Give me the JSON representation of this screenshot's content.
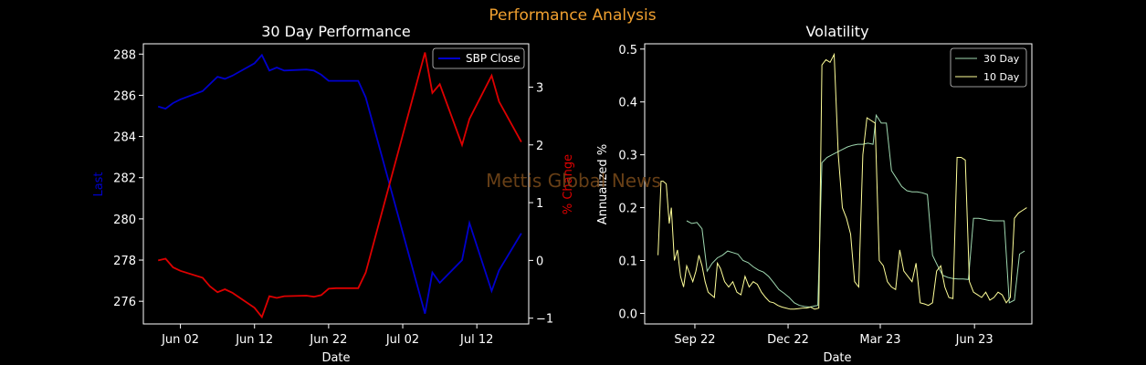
{
  "suptitle": "Performance Analysis",
  "watermark": "Mettis Global News",
  "colors": {
    "background": "#000000",
    "suptitle": "#f0a030",
    "close_line": "#0000cc",
    "pct_line": "#dd0000",
    "vol30": "#9fd8b0",
    "vol10": "#ffff99",
    "axes": "#ffffff",
    "watermark": "#7a4a1a"
  },
  "chart_data": [
    {
      "type": "line",
      "title": "30 Day Performance",
      "xlabel": "Date",
      "ylabel": "Last",
      "ylabel_right": "% Change",
      "legend": {
        "position": "top-right",
        "entries": [
          "SBP Close"
        ]
      },
      "grid": false,
      "x_ticks": [
        "2023-06-02",
        "2023-06-12",
        "2023-06-22",
        "2023-07-02",
        "2023-07-12"
      ],
      "x_tick_labels": [
        "Jun 02",
        "Jun 12",
        "Jun 22",
        "Jul 02",
        "Jul 12"
      ],
      "xlim": [
        "2023-05-28",
        "2023-07-19"
      ],
      "ylim": [
        274.9,
        288.5
      ],
      "y_ticks": [
        276,
        278,
        280,
        282,
        284,
        286,
        288
      ],
      "y2lim": [
        -1.1,
        3.75
      ],
      "y2_ticks": [
        -1,
        0,
        1,
        2,
        3
      ],
      "series": [
        {
          "name": "SBP Close",
          "axis": "left",
          "x": [
            "2023-05-30",
            "2023-05-31",
            "2023-06-01",
            "2023-06-02",
            "2023-06-05",
            "2023-06-06",
            "2023-06-07",
            "2023-06-08",
            "2023-06-09",
            "2023-06-12",
            "2023-06-13",
            "2023-06-14",
            "2023-06-15",
            "2023-06-16",
            "2023-06-19",
            "2023-06-20",
            "2023-06-21",
            "2023-06-22",
            "2023-06-23",
            "2023-06-26",
            "2023-06-27",
            "2023-07-05",
            "2023-07-06",
            "2023-07-07",
            "2023-07-10",
            "2023-07-11",
            "2023-07-14",
            "2023-07-15",
            "2023-07-18"
          ],
          "y": [
            285.45,
            285.35,
            285.62,
            285.8,
            286.2,
            286.55,
            286.9,
            286.8,
            286.95,
            287.55,
            287.95,
            287.2,
            287.35,
            287.2,
            287.25,
            287.2,
            287.0,
            286.7,
            286.7,
            286.7,
            285.9,
            275.4,
            277.4,
            276.9,
            278.0,
            279.8,
            276.5,
            277.5,
            279.3
          ]
        },
        {
          "name": "% Change",
          "axis": "right",
          "x": [
            "2023-05-30",
            "2023-05-31",
            "2023-06-01",
            "2023-06-02",
            "2023-06-05",
            "2023-06-06",
            "2023-06-07",
            "2023-06-08",
            "2023-06-09",
            "2023-06-12",
            "2023-06-13",
            "2023-06-14",
            "2023-06-15",
            "2023-06-16",
            "2023-06-19",
            "2023-06-20",
            "2023-06-21",
            "2023-06-22",
            "2023-06-23",
            "2023-06-26",
            "2023-06-27",
            "2023-07-05",
            "2023-07-06",
            "2023-07-07",
            "2023-07-10",
            "2023-07-11",
            "2023-07-14",
            "2023-07-15",
            "2023-07-18"
          ],
          "y": [
            0.0,
            0.03,
            -0.12,
            -0.18,
            -0.3,
            -0.45,
            -0.55,
            -0.5,
            -0.56,
            -0.82,
            -0.98,
            -0.62,
            -0.65,
            -0.62,
            -0.61,
            -0.63,
            -0.6,
            -0.49,
            -0.48,
            -0.48,
            -0.21,
            3.6,
            2.9,
            3.05,
            2.0,
            2.45,
            3.2,
            2.75,
            2.05
          ]
        }
      ]
    },
    {
      "type": "line",
      "title": "Volatility",
      "xlabel": "Date",
      "ylabel": "Annualized %",
      "legend": {
        "position": "top-right",
        "entries": [
          "30 Day",
          "10 Day"
        ]
      },
      "grid": false,
      "x_ticks": [
        "2022-09-01",
        "2022-12-01",
        "2023-03-01",
        "2023-06-01"
      ],
      "x_tick_labels": [
        "Sep 22",
        "Dec 22",
        "Mar 23",
        "Jun 23"
      ],
      "xlim": [
        "2022-07-14",
        "2023-07-27"
      ],
      "ylim": [
        -0.02,
        0.51
      ],
      "y_ticks": [
        0.0,
        0.1,
        0.2,
        0.3,
        0.4,
        0.5
      ],
      "y_tick_labels": [
        "0.0",
        "0.1",
        "0.2",
        "0.3",
        "0.4",
        "0.5"
      ],
      "series": [
        {
          "name": "30 Day",
          "x": [
            "2022-08-24",
            "2022-08-29",
            "2022-09-03",
            "2022-09-08",
            "2022-09-13",
            "2022-09-18",
            "2022-09-23",
            "2022-09-28",
            "2022-10-03",
            "2022-10-08",
            "2022-10-13",
            "2022-10-18",
            "2022-10-23",
            "2022-10-28",
            "2022-11-02",
            "2022-11-07",
            "2022-11-12",
            "2022-11-17",
            "2022-11-22",
            "2022-11-27",
            "2022-12-02",
            "2022-12-07",
            "2022-12-12",
            "2022-12-17",
            "2022-12-22",
            "2022-12-27",
            "2022-12-30",
            "2023-01-03",
            "2023-01-08",
            "2023-01-13",
            "2023-01-18",
            "2023-01-23",
            "2023-01-28",
            "2023-02-02",
            "2023-02-07",
            "2023-02-12",
            "2023-02-17",
            "2023-02-22",
            "2023-02-25",
            "2023-03-02",
            "2023-03-07",
            "2023-03-12",
            "2023-03-17",
            "2023-03-22",
            "2023-03-27",
            "2023-04-01",
            "2023-04-06",
            "2023-04-11",
            "2023-04-16",
            "2023-04-21",
            "2023-04-26",
            "2023-05-01",
            "2023-05-06",
            "2023-05-11",
            "2023-05-16",
            "2023-05-21",
            "2023-05-26",
            "2023-05-31",
            "2023-06-05",
            "2023-06-10",
            "2023-06-15",
            "2023-06-20",
            "2023-06-25",
            "2023-06-30",
            "2023-07-05",
            "2023-07-10",
            "2023-07-15",
            "2023-07-20"
          ],
          "y": [
            0.175,
            0.17,
            0.172,
            0.16,
            0.08,
            0.095,
            0.105,
            0.11,
            0.118,
            0.115,
            0.112,
            0.1,
            0.096,
            0.088,
            0.082,
            0.078,
            0.07,
            0.058,
            0.045,
            0.038,
            0.03,
            0.02,
            0.015,
            0.013,
            0.012,
            0.014,
            0.015,
            0.285,
            0.295,
            0.3,
            0.305,
            0.31,
            0.315,
            0.318,
            0.32,
            0.32,
            0.322,
            0.32,
            0.375,
            0.36,
            0.36,
            0.27,
            0.255,
            0.24,
            0.232,
            0.23,
            0.23,
            0.228,
            0.225,
            0.11,
            0.09,
            0.072,
            0.068,
            0.066,
            0.065,
            0.065,
            0.064,
            0.18,
            0.18,
            0.178,
            0.176,
            0.175,
            0.175,
            0.175,
            0.02,
            0.025,
            0.112,
            0.118
          ]
        },
        {
          "name": "10 Day",
          "x": [
            "2022-07-27",
            "2022-07-30",
            "2022-08-01",
            "2022-08-04",
            "2022-08-07",
            "2022-08-09",
            "2022-08-12",
            "2022-08-15",
            "2022-08-18",
            "2022-08-21",
            "2022-08-24",
            "2022-08-27",
            "2022-08-30",
            "2022-09-02",
            "2022-09-05",
            "2022-09-08",
            "2022-09-11",
            "2022-09-14",
            "2022-09-17",
            "2022-09-20",
            "2022-09-23",
            "2022-09-26",
            "2022-09-30",
            "2022-10-04",
            "2022-10-08",
            "2022-10-12",
            "2022-10-16",
            "2022-10-20",
            "2022-10-24",
            "2022-10-28",
            "2022-11-01",
            "2022-11-05",
            "2022-11-09",
            "2022-11-13",
            "2022-11-17",
            "2022-11-21",
            "2022-11-25",
            "2022-11-29",
            "2022-12-03",
            "2022-12-07",
            "2022-12-11",
            "2022-12-15",
            "2022-12-19",
            "2022-12-23",
            "2022-12-27",
            "2022-12-31",
            "2023-01-03",
            "2023-01-07",
            "2023-01-11",
            "2023-01-15",
            "2023-01-19",
            "2023-01-23",
            "2023-01-27",
            "2023-01-31",
            "2023-02-04",
            "2023-02-08",
            "2023-02-12",
            "2023-02-16",
            "2023-02-20",
            "2023-02-24",
            "2023-02-28",
            "2023-03-04",
            "2023-03-08",
            "2023-03-12",
            "2023-03-16",
            "2023-03-20",
            "2023-03-24",
            "2023-03-28",
            "2023-04-01",
            "2023-04-05",
            "2023-04-09",
            "2023-04-13",
            "2023-04-17",
            "2023-04-21",
            "2023-04-25",
            "2023-04-29",
            "2023-05-03",
            "2023-05-07",
            "2023-05-11",
            "2023-05-15",
            "2023-05-19",
            "2023-05-23",
            "2023-05-27",
            "2023-05-31",
            "2023-06-04",
            "2023-06-08",
            "2023-06-12",
            "2023-06-16",
            "2023-06-20",
            "2023-06-24",
            "2023-06-28",
            "2023-07-02",
            "2023-07-06",
            "2023-07-10",
            "2023-07-14",
            "2023-07-18",
            "2023-07-22"
          ],
          "y": [
            0.11,
            0.25,
            0.25,
            0.245,
            0.17,
            0.2,
            0.1,
            0.12,
            0.07,
            0.05,
            0.09,
            0.075,
            0.06,
            0.08,
            0.11,
            0.09,
            0.06,
            0.04,
            0.035,
            0.03,
            0.095,
            0.085,
            0.06,
            0.05,
            0.06,
            0.04,
            0.035,
            0.07,
            0.05,
            0.06,
            0.055,
            0.04,
            0.03,
            0.022,
            0.02,
            0.015,
            0.012,
            0.01,
            0.008,
            0.008,
            0.009,
            0.01,
            0.01,
            0.012,
            0.008,
            0.01,
            0.47,
            0.48,
            0.475,
            0.49,
            0.3,
            0.2,
            0.18,
            0.15,
            0.06,
            0.05,
            0.3,
            0.37,
            0.365,
            0.36,
            0.1,
            0.09,
            0.06,
            0.05,
            0.045,
            0.12,
            0.08,
            0.07,
            0.06,
            0.095,
            0.02,
            0.018,
            0.015,
            0.02,
            0.08,
            0.09,
            0.05,
            0.03,
            0.028,
            0.295,
            0.295,
            0.29,
            0.06,
            0.04,
            0.035,
            0.03,
            0.04,
            0.025,
            0.03,
            0.04,
            0.035,
            0.02,
            0.03,
            0.18,
            0.19,
            0.195,
            0.2
          ]
        }
      ]
    }
  ]
}
